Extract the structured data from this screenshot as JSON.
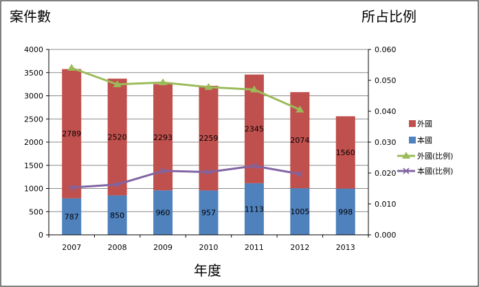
{
  "chart_data": {
    "type": "bar",
    "subtype": "stacked-bar-with-secondary-lines",
    "title": "",
    "ylabel_left": "案件數",
    "ylabel_right": "所占比例",
    "xlabel": "年度",
    "categories": [
      "2007",
      "2008",
      "2009",
      "2010",
      "2011",
      "2012",
      "2013"
    ],
    "ylim_left": [
      0,
      4000
    ],
    "yticks_left": [
      "0",
      "500",
      "1000",
      "1500",
      "2000",
      "2500",
      "3000",
      "3500",
      "4000"
    ],
    "ylim_right": [
      0,
      0.06
    ],
    "yticks_right": [
      "0.000",
      "0.010",
      "0.020",
      "0.030",
      "0.040",
      "0.050",
      "0.060"
    ],
    "grid": true,
    "legend_position": "right",
    "bar_series": [
      {
        "name": "本國",
        "color": "#4f81bd",
        "values": [
          787,
          850,
          960,
          957,
          1113,
          1005,
          998
        ]
      },
      {
        "name": "外國",
        "color": "#c0504d",
        "values": [
          2789,
          2520,
          2293,
          2259,
          2345,
          2074,
          1560
        ]
      }
    ],
    "line_series": [
      {
        "name": "外國(比例)",
        "color": "#9bbb59",
        "marker": "triangle",
        "values": [
          0.054,
          0.0487,
          0.0493,
          0.0478,
          0.047,
          0.0405,
          null
        ]
      },
      {
        "name": "本國(比例)",
        "color": "#8064a2",
        "marker": "x",
        "values": [
          0.0153,
          0.0163,
          0.0207,
          0.0203,
          0.0223,
          0.0197,
          null
        ]
      }
    ],
    "legend": [
      "外國",
      "本國",
      "外國(比例)",
      "本國(比例)"
    ]
  }
}
